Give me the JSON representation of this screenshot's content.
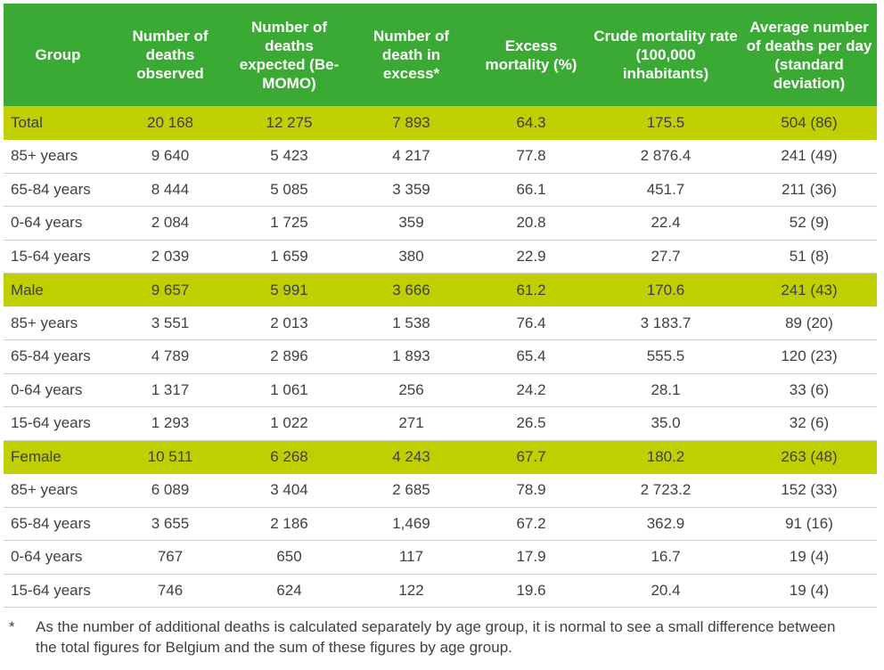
{
  "columns": [
    "Group",
    "Number of deaths observed",
    "Number of deaths expected (Be-MOMO)",
    "Number of death in excess*",
    "Excess mortality (%)",
    "Crude mortality rate (100,000 inhabitants)",
    "Average number of deaths per day (standard deviation)"
  ],
  "rows": [
    {
      "group": true,
      "cells": [
        "Total",
        "20 168",
        "12 275",
        "7 893",
        "64.3",
        "175.5",
        "504 (86)"
      ]
    },
    {
      "group": false,
      "cells": [
        "85+ years",
        "9 640",
        "5 423",
        "4 217",
        "77.8",
        "2 876.4",
        "241 (49)"
      ]
    },
    {
      "group": false,
      "cells": [
        "65-84 years",
        "8 444",
        "5 085",
        "3 359",
        "66.1",
        "451.7",
        "211 (36)"
      ]
    },
    {
      "group": false,
      "cells": [
        "0-64 years",
        "2 084",
        "1 725",
        "359",
        "20.8",
        "22.4",
        "52 (9)"
      ]
    },
    {
      "group": false,
      "cells": [
        "15-64 years",
        "2 039",
        "1 659",
        "380",
        "22.9",
        "27.7",
        "51 (8)"
      ]
    },
    {
      "group": true,
      "cells": [
        "Male",
        "9 657",
        "5 991",
        "3 666",
        "61.2",
        "170.6",
        "241 (43)"
      ]
    },
    {
      "group": false,
      "cells": [
        "85+ years",
        "3 551",
        "2 013",
        "1 538",
        "76.4",
        "3 183.7",
        "89 (20)"
      ]
    },
    {
      "group": false,
      "cells": [
        "65-84 years",
        "4 789",
        "2 896",
        "1 893",
        "65.4",
        "555.5",
        "120 (23)"
      ]
    },
    {
      "group": false,
      "cells": [
        "0-64 years",
        "1 317",
        "1 061",
        "256",
        "24.2",
        "28.1",
        "33 (6)"
      ]
    },
    {
      "group": false,
      "cells": [
        "15-64 years",
        "1 293",
        "1 022",
        "271",
        "26.5",
        "35.0",
        "32 (6)"
      ]
    },
    {
      "group": true,
      "cells": [
        "Female",
        "10 511",
        "6 268",
        "4 243",
        "67.7",
        "180.2",
        "263 (48)"
      ]
    },
    {
      "group": false,
      "cells": [
        "85+ years",
        "6 089",
        "3 404",
        "2 685",
        "78.9",
        "2 723.2",
        "152 (33)"
      ]
    },
    {
      "group": false,
      "cells": [
        "65-84 years",
        "3 655",
        "2 186",
        "1,469",
        "67.2",
        "362.9",
        "91 (16)"
      ]
    },
    {
      "group": false,
      "cells": [
        "0-64 years",
        "767",
        "650",
        "117",
        "17.9",
        "16.7",
        "19 (4)"
      ]
    },
    {
      "group": false,
      "cells": [
        "15-64 years",
        "746",
        "624",
        "122",
        "19.6",
        "20.4",
        "19 (4)"
      ]
    }
  ],
  "footnote": {
    "marker": "*",
    "text": "As the number of additional deaths is calculated separately by age group, it is normal to see a small difference between the total figures for Belgium and the sum of these figures by age group."
  },
  "colors": {
    "header_bg": "#3aaa35",
    "group_row_bg": "#bfcf00",
    "text": "#404040"
  }
}
